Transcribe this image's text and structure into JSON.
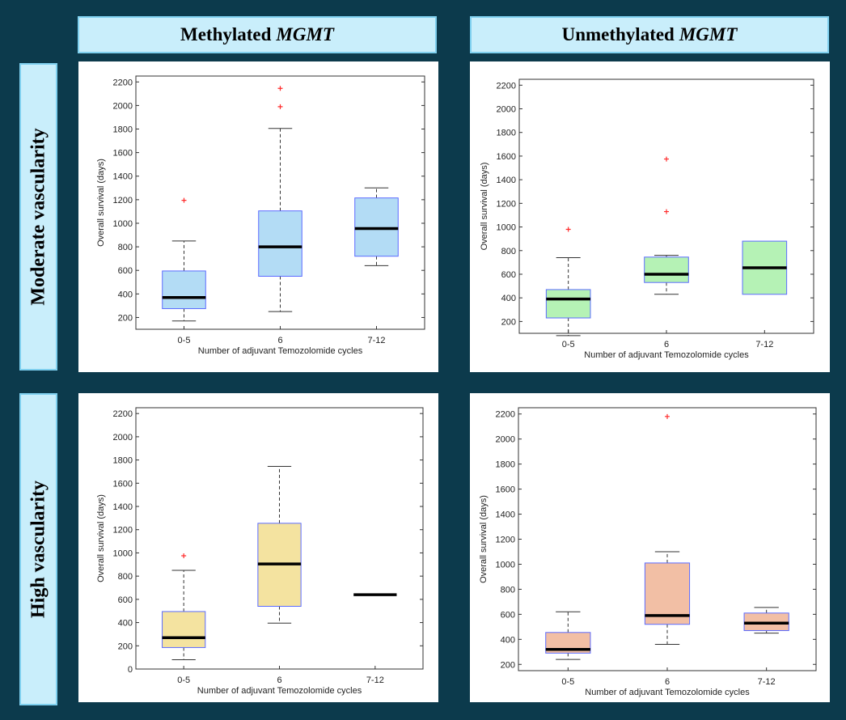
{
  "headers": {
    "col1_prefix": "Methylated",
    "col1_gene": "MGMT",
    "col2_prefix": "Unmethylated",
    "col2_gene": "MGMT",
    "row1": "Moderate vascularity",
    "row2": "High vascularity"
  },
  "chart_data": [
    {
      "type": "box",
      "xlabel": "Number of adjuvant Temozolomide cycles",
      "ylabel": "Overall survival (days)",
      "ylim": [
        100,
        2250
      ],
      "yticks": [
        200,
        400,
        600,
        800,
        1000,
        1200,
        1400,
        1600,
        1800,
        2000,
        2200
      ],
      "categories": [
        "0-5",
        "6",
        "7-12"
      ],
      "fill": "#b3dcf5",
      "boxes": [
        {
          "min": 170,
          "q1": 275,
          "median": 370,
          "q3": 595,
          "max": 850,
          "outliers": [
            1195
          ]
        },
        {
          "min": 250,
          "q1": 550,
          "median": 800,
          "q3": 1105,
          "max": 1805,
          "outliers": [
            1990,
            2145
          ]
        },
        {
          "min": 640,
          "q1": 720,
          "median": 955,
          "q3": 1215,
          "max": 1300,
          "outliers": []
        }
      ]
    },
    {
      "type": "box",
      "xlabel": "Number of adjuvant Temozolomide cycles",
      "ylabel": "Overall survival (days)",
      "ylim": [
        100,
        2250
      ],
      "yticks": [
        200,
        400,
        600,
        800,
        1000,
        1200,
        1400,
        1600,
        1800,
        2000,
        2200
      ],
      "categories": [
        "0-5",
        "6",
        "7-12"
      ],
      "fill": "#b5f2b5",
      "boxes": [
        {
          "min": 80,
          "q1": 230,
          "median": 390,
          "q3": 470,
          "max": 740,
          "outliers": [
            980
          ]
        },
        {
          "min": 430,
          "q1": 530,
          "median": 600,
          "q3": 745,
          "max": 760,
          "outliers": [
            1130,
            1575
          ]
        },
        {
          "min": 430,
          "q1": 430,
          "median": 655,
          "q3": 880,
          "max": 880,
          "outliers": []
        }
      ]
    },
    {
      "type": "box",
      "xlabel": "Number of adjuvant Temozolomide cycles",
      "ylabel": "Overall survival (days)",
      "ylim": [
        0,
        2250
      ],
      "yticks": [
        0,
        200,
        400,
        600,
        800,
        1000,
        1200,
        1400,
        1600,
        1800,
        2000,
        2200
      ],
      "categories": [
        "0-5",
        "6",
        "7-12"
      ],
      "fill": "#f4e3a0",
      "boxes": [
        {
          "min": 80,
          "q1": 185,
          "median": 270,
          "q3": 495,
          "max": 850,
          "outliers": [
            975
          ]
        },
        {
          "min": 395,
          "q1": 540,
          "median": 905,
          "q3": 1255,
          "max": 1745,
          "outliers": []
        },
        {
          "min": 640,
          "q1": 640,
          "median": 640,
          "q3": 640,
          "max": 640,
          "outliers": []
        }
      ]
    },
    {
      "type": "box",
      "xlabel": "Number of adjuvant Temozolomide cycles",
      "ylabel": "Overall survival (days)",
      "ylim": [
        150,
        2250
      ],
      "yticks": [
        200,
        400,
        600,
        800,
        1000,
        1200,
        1400,
        1600,
        1800,
        2000,
        2200
      ],
      "categories": [
        "0-5",
        "6",
        "7-12"
      ],
      "fill": "#f2bfa5",
      "boxes": [
        {
          "min": 240,
          "q1": 290,
          "median": 320,
          "q3": 455,
          "max": 620,
          "outliers": []
        },
        {
          "min": 360,
          "q1": 520,
          "median": 590,
          "q3": 1010,
          "max": 1100,
          "outliers": [
            2180
          ]
        },
        {
          "min": 450,
          "q1": 470,
          "median": 530,
          "q3": 610,
          "max": 655,
          "outliers": []
        }
      ]
    }
  ]
}
